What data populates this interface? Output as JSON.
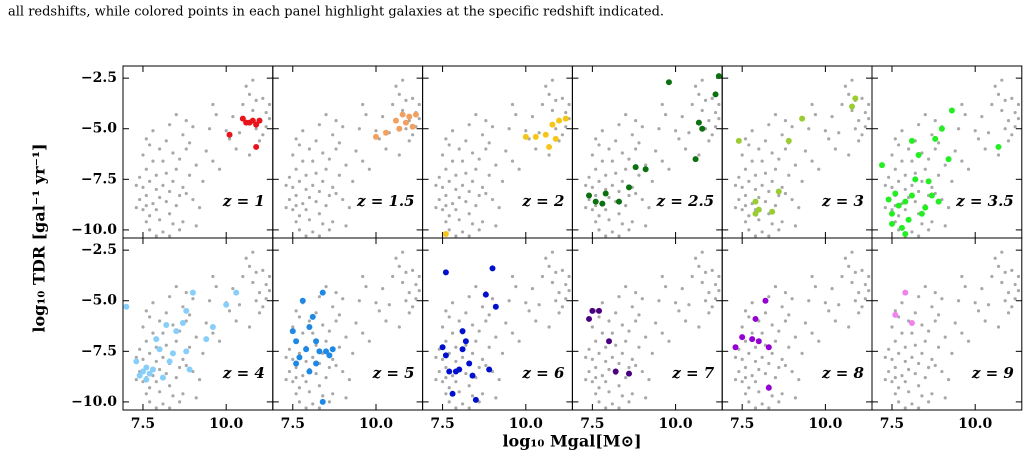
{
  "chart_data": {
    "type": "scatter",
    "caption": "all redshifts, while colored points in each panel highlight galaxies at the specific redshift indicated.",
    "xlabel": "log₁₀ Mgal[M⊙]",
    "ylabel": "log₁₀ TDR [gal⁻¹ yr⁻¹]",
    "xlim": [
      6.9,
      11.4
    ],
    "ylim": [
      -10.4,
      -1.9
    ],
    "xticks": [
      7.5,
      {
        "value": 10.0,
        "label": "10.0"
      }
    ],
    "yticks": [
      {
        "value": -2.5,
        "label": "−2.5"
      },
      {
        "value": -5.0,
        "label": "−5.0"
      },
      {
        "value": -7.5,
        "label": "−7.5"
      },
      {
        "value": -10.0,
        "label": "−10.0"
      }
    ],
    "background": {
      "color": "#a8a8a8",
      "x": [
        7.6,
        7.7,
        7.5,
        7.8,
        7.6,
        7.4,
        7.7,
        7.5,
        7.9,
        7.6,
        7.4,
        7.8,
        7.5,
        7.7,
        7.6,
        7.9,
        8.0,
        8.1,
        8.2,
        8.0,
        8.3,
        8.1,
        7.9,
        8.2,
        8.4,
        8.3,
        8.5,
        8.4,
        8.6,
        8.7,
        8.5,
        8.6,
        8.8,
        8.7,
        8.9,
        8.8,
        9.0,
        8.9,
        9.1,
        9.0,
        9.2,
        8.7,
        8.4,
        8.2,
        8.0,
        8.5,
        8.3,
        9.4,
        9.5,
        9.3,
        9.6,
        9.7,
        9.6,
        10.1,
        10.3,
        10.4,
        10.6,
        10.7,
        10.8,
        10.9,
        11.0,
        10.5,
        11.0,
        10.9,
        10.8,
        10.7,
        11.2,
        11.3,
        11.2,
        11.1,
        11.3,
        11.1,
        10.2,
        10.0,
        7.3,
        7.3,
        7.8,
        9.8,
        7.9,
        8.1,
        8.6,
        8.3,
        7.7,
        9.1,
        8.8,
        7.6
      ],
      "y": [
        -5.5,
        -5.8,
        -6.3,
        -6.6,
        -7.0,
        -7.4,
        -7.6,
        -7.9,
        -8.0,
        -8.3,
        -8.5,
        -8.7,
        -9.0,
        -9.3,
        -9.6,
        -9.0,
        -8.4,
        -7.8,
        -8.6,
        -9.5,
        -9.2,
        -10.1,
        -10.3,
        -7.2,
        -7.6,
        -8.1,
        -8.8,
        -9.7,
        -8.3,
        -7.9,
        -7.0,
        -6.5,
        -6.0,
        -5.3,
        -5.7,
        -4.6,
        -4.9,
        -7.3,
        -6.8,
        -8.5,
        -8.9,
        -9.6,
        -6.2,
        -5.6,
        -6.0,
        -4.3,
        -4.8,
        -6.1,
        -5.0,
        -7.6,
        -6.6,
        -4.3,
        -3.8,
        -5.5,
        -6.0,
        -5.2,
        -2.9,
        -3.3,
        -4.1,
        -5.0,
        -5.6,
        -3.8,
        -4.6,
        -3.6,
        -2.6,
        -6.3,
        -4.2,
        -4.5,
        -4.9,
        -5.3,
        -3.8,
        -3.5,
        -4.4,
        -5.1,
        -7.8,
        -8.9,
        -5.1,
        -7.0,
        -7.3,
        -6.6,
        -10.0,
        -10.3,
        -10.0,
        -9.8,
        -8.2,
        -8.8
      ]
    },
    "panels": [
      {
        "label": "z = 1",
        "color": "#e8141c",
        "x": [
          10.1,
          10.5,
          10.7,
          10.9,
          11.0,
          10.9,
          10.6,
          10.8
        ],
        "y": [
          -5.3,
          -4.5,
          -4.7,
          -4.8,
          -4.6,
          -5.9,
          -4.7,
          -4.6
        ]
      },
      {
        "label": "z = 1.5",
        "color": "#f0a060",
        "x": [
          10.0,
          10.3,
          10.6,
          10.8,
          11.0,
          11.1,
          10.7,
          10.9,
          11.2
        ],
        "y": [
          -5.4,
          -5.2,
          -4.6,
          -4.3,
          -4.4,
          -4.9,
          -5.0,
          -4.7,
          -4.3
        ]
      },
      {
        "label": "z = 2",
        "color": "#f5c518",
        "x": [
          7.6,
          10.0,
          10.3,
          10.6,
          10.7,
          10.8,
          11.0,
          11.2,
          10.9
        ],
        "y": [
          -10.2,
          -5.4,
          -5.4,
          -5.3,
          -5.9,
          -4.8,
          -4.6,
          -4.5,
          -5.5
        ]
      },
      {
        "label": "z = 2.5",
        "color": "#0a7010",
        "x": [
          7.4,
          7.6,
          7.9,
          7.8,
          8.3,
          8.6,
          8.8,
          9.1,
          9.8,
          10.6,
          10.7,
          10.8,
          11.2,
          11.3
        ],
        "y": [
          -8.3,
          -8.6,
          -8.2,
          -8.7,
          -8.6,
          -7.9,
          -6.9,
          -7.0,
          -2.7,
          -6.5,
          -4.7,
          -5.0,
          -3.3,
          -2.4
        ]
      },
      {
        "label": "z = 3",
        "color": "#9acd32",
        "x": [
          7.4,
          7.9,
          8.0,
          7.9,
          8.4,
          8.6,
          8.9,
          9.3,
          10.8,
          10.9
        ],
        "y": [
          -5.6,
          -8.6,
          -9.0,
          -9.2,
          -9.1,
          -8.1,
          -5.6,
          -4.5,
          -3.9,
          -3.5
        ]
      },
      {
        "label": "z = 3.5",
        "color": "#22ee22",
        "x": [
          7.2,
          7.4,
          7.5,
          7.6,
          7.7,
          7.5,
          7.8,
          7.9,
          8.0,
          8.1,
          7.9,
          8.2,
          8.1,
          8.3,
          8.5,
          8.6,
          8.7,
          8.9,
          8.8,
          9.2,
          9.3,
          9.0,
          10.7,
          8.4
        ],
        "y": [
          -6.8,
          -8.5,
          -9.2,
          -8.2,
          -8.8,
          -9.7,
          -9.9,
          -8.6,
          -9.5,
          -8.3,
          -10.2,
          -7.5,
          -5.6,
          -6.3,
          -8.9,
          -7.6,
          -8.3,
          -8.6,
          -5.5,
          -6.5,
          -4.1,
          -5.0,
          -5.9,
          -9.2
        ]
      },
      {
        "label": "z = 4",
        "color": "#87cefa",
        "x": [
          7.0,
          7.3,
          7.5,
          7.6,
          7.4,
          7.7,
          7.8,
          7.9,
          8.0,
          8.2,
          8.3,
          8.5,
          8.4,
          8.7,
          8.8,
          8.9,
          8.8,
          9.0,
          9.4,
          9.6,
          10.0,
          10.3,
          7.6,
          8.1
        ],
        "y": [
          -5.3,
          -8.0,
          -8.5,
          -8.3,
          -8.7,
          -8.6,
          -8.4,
          -6.9,
          -7.4,
          -6.2,
          -8.0,
          -6.5,
          -7.6,
          -6.1,
          -7.5,
          -8.4,
          -5.5,
          -4.6,
          -6.9,
          -6.3,
          -5.2,
          -4.6,
          -8.9,
          -8.8
        ]
      },
      {
        "label": "z = 5",
        "color": "#1e88e5",
        "x": [
          7.5,
          7.6,
          7.7,
          7.6,
          7.8,
          7.9,
          8.0,
          8.1,
          8.2,
          8.3,
          8.4,
          8.5,
          8.6,
          8.4,
          8.7,
          8.0,
          8.2
        ],
        "y": [
          -6.5,
          -7.0,
          -7.8,
          -8.1,
          -5.0,
          -7.4,
          -6.3,
          -5.8,
          -7.0,
          -7.5,
          -4.6,
          -7.5,
          -7.7,
          -10.0,
          -7.4,
          -8.5,
          -8.1
        ]
      },
      {
        "label": "z = 6",
        "color": "#0010cd",
        "x": [
          7.6,
          7.5,
          7.6,
          7.7,
          7.9,
          7.8,
          8.0,
          8.1,
          8.2,
          8.3,
          8.4,
          8.5,
          8.8,
          9.0,
          9.1,
          8.9,
          8.1
        ],
        "y": [
          -3.6,
          -7.3,
          -7.7,
          -8.5,
          -8.5,
          -9.6,
          -8.4,
          -7.4,
          -7.0,
          -8.1,
          -8.7,
          -9.9,
          -4.7,
          -3.4,
          -5.3,
          -8.4,
          -6.5
        ]
      },
      {
        "label": "z = 7",
        "color": "#4b0082",
        "x": [
          7.4,
          7.5,
          7.7,
          8.0,
          8.2,
          8.6
        ],
        "y": [
          -5.9,
          -5.5,
          -5.5,
          -7.0,
          -8.5,
          -8.6
        ]
      },
      {
        "label": "z = 8",
        "color": "#9400d3",
        "x": [
          7.3,
          7.5,
          7.8,
          8.0,
          8.2,
          8.3,
          8.3,
          7.9
        ],
        "y": [
          -7.3,
          -6.8,
          -6.9,
          -7.0,
          -5.0,
          -7.3,
          -9.3,
          -5.9
        ]
      },
      {
        "label": "z = 9",
        "color": "#ee82ee",
        "x": [
          7.6,
          7.9,
          8.1
        ],
        "y": [
          -5.7,
          -4.6,
          -6.1
        ]
      }
    ]
  }
}
